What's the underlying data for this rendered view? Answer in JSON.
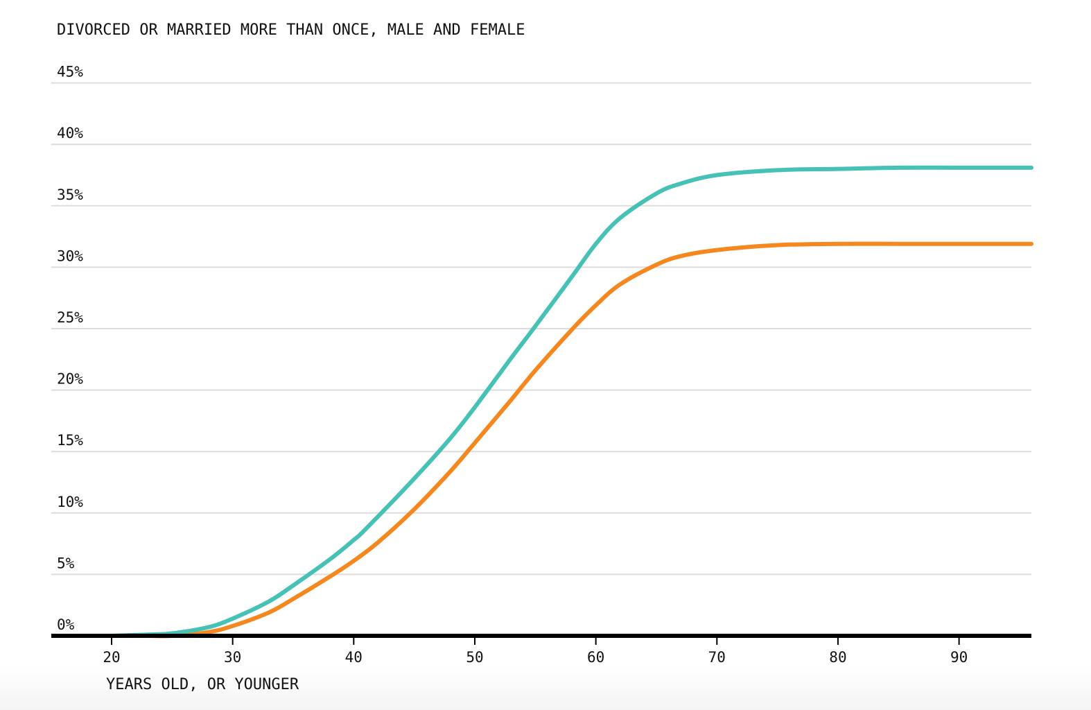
{
  "chart_data": {
    "type": "line",
    "title": "DIVORCED OR MARRIED MORE THAN ONCE, MALE AND FEMALE",
    "xlabel": "YEARS OLD, OR YOUNGER",
    "ylabel": "",
    "xlim": [
      15,
      96
    ],
    "ylim": [
      0,
      45
    ],
    "grid": true,
    "legend": "none",
    "y_ticks": [
      0,
      5,
      10,
      15,
      20,
      25,
      30,
      35,
      40,
      45
    ],
    "y_tick_labels": [
      "0%",
      "5%",
      "10%",
      "15%",
      "20%",
      "25%",
      "30%",
      "35%",
      "40%",
      "45%"
    ],
    "x_ticks": [
      20,
      30,
      40,
      50,
      60,
      70,
      80,
      90
    ],
    "x_tick_labels": [
      "20",
      "30",
      "40",
      "50",
      "60",
      "70",
      "80",
      "90"
    ],
    "series": [
      {
        "name": "teal series",
        "color": "#45c1b6",
        "x": [
          20,
          23,
          25,
          28,
          30,
          33,
          35,
          38,
          40,
          41,
          45,
          48,
          50,
          53,
          55,
          58,
          60,
          62,
          65,
          67,
          70,
          75,
          80,
          85,
          90,
          96
        ],
        "values": [
          0,
          0.1,
          0.2,
          0.7,
          1.4,
          2.8,
          4.1,
          6.2,
          7.8,
          8.7,
          12.8,
          16.1,
          18.6,
          22.6,
          25.2,
          29.2,
          31.9,
          34.0,
          36.0,
          36.8,
          37.5,
          37.9,
          38.0,
          38.1,
          38.1,
          38.1
        ]
      },
      {
        "name": "orange series",
        "color": "#f5871f",
        "x": [
          20,
          23,
          25,
          28,
          30,
          33,
          35,
          38,
          40,
          42,
          45,
          48,
          50,
          53,
          55,
          58,
          60,
          62,
          65,
          67,
          70,
          75,
          80,
          85,
          90,
          96
        ],
        "values": [
          0,
          0,
          0,
          0.3,
          0.8,
          1.9,
          3.0,
          4.8,
          6.1,
          7.6,
          10.3,
          13.4,
          15.7,
          19.2,
          21.6,
          24.9,
          26.9,
          28.6,
          30.2,
          30.9,
          31.4,
          31.8,
          31.9,
          31.9,
          31.9,
          31.9
        ]
      }
    ]
  },
  "style": {
    "gridline_color": "#dddddd",
    "axis_color": "#000000"
  }
}
